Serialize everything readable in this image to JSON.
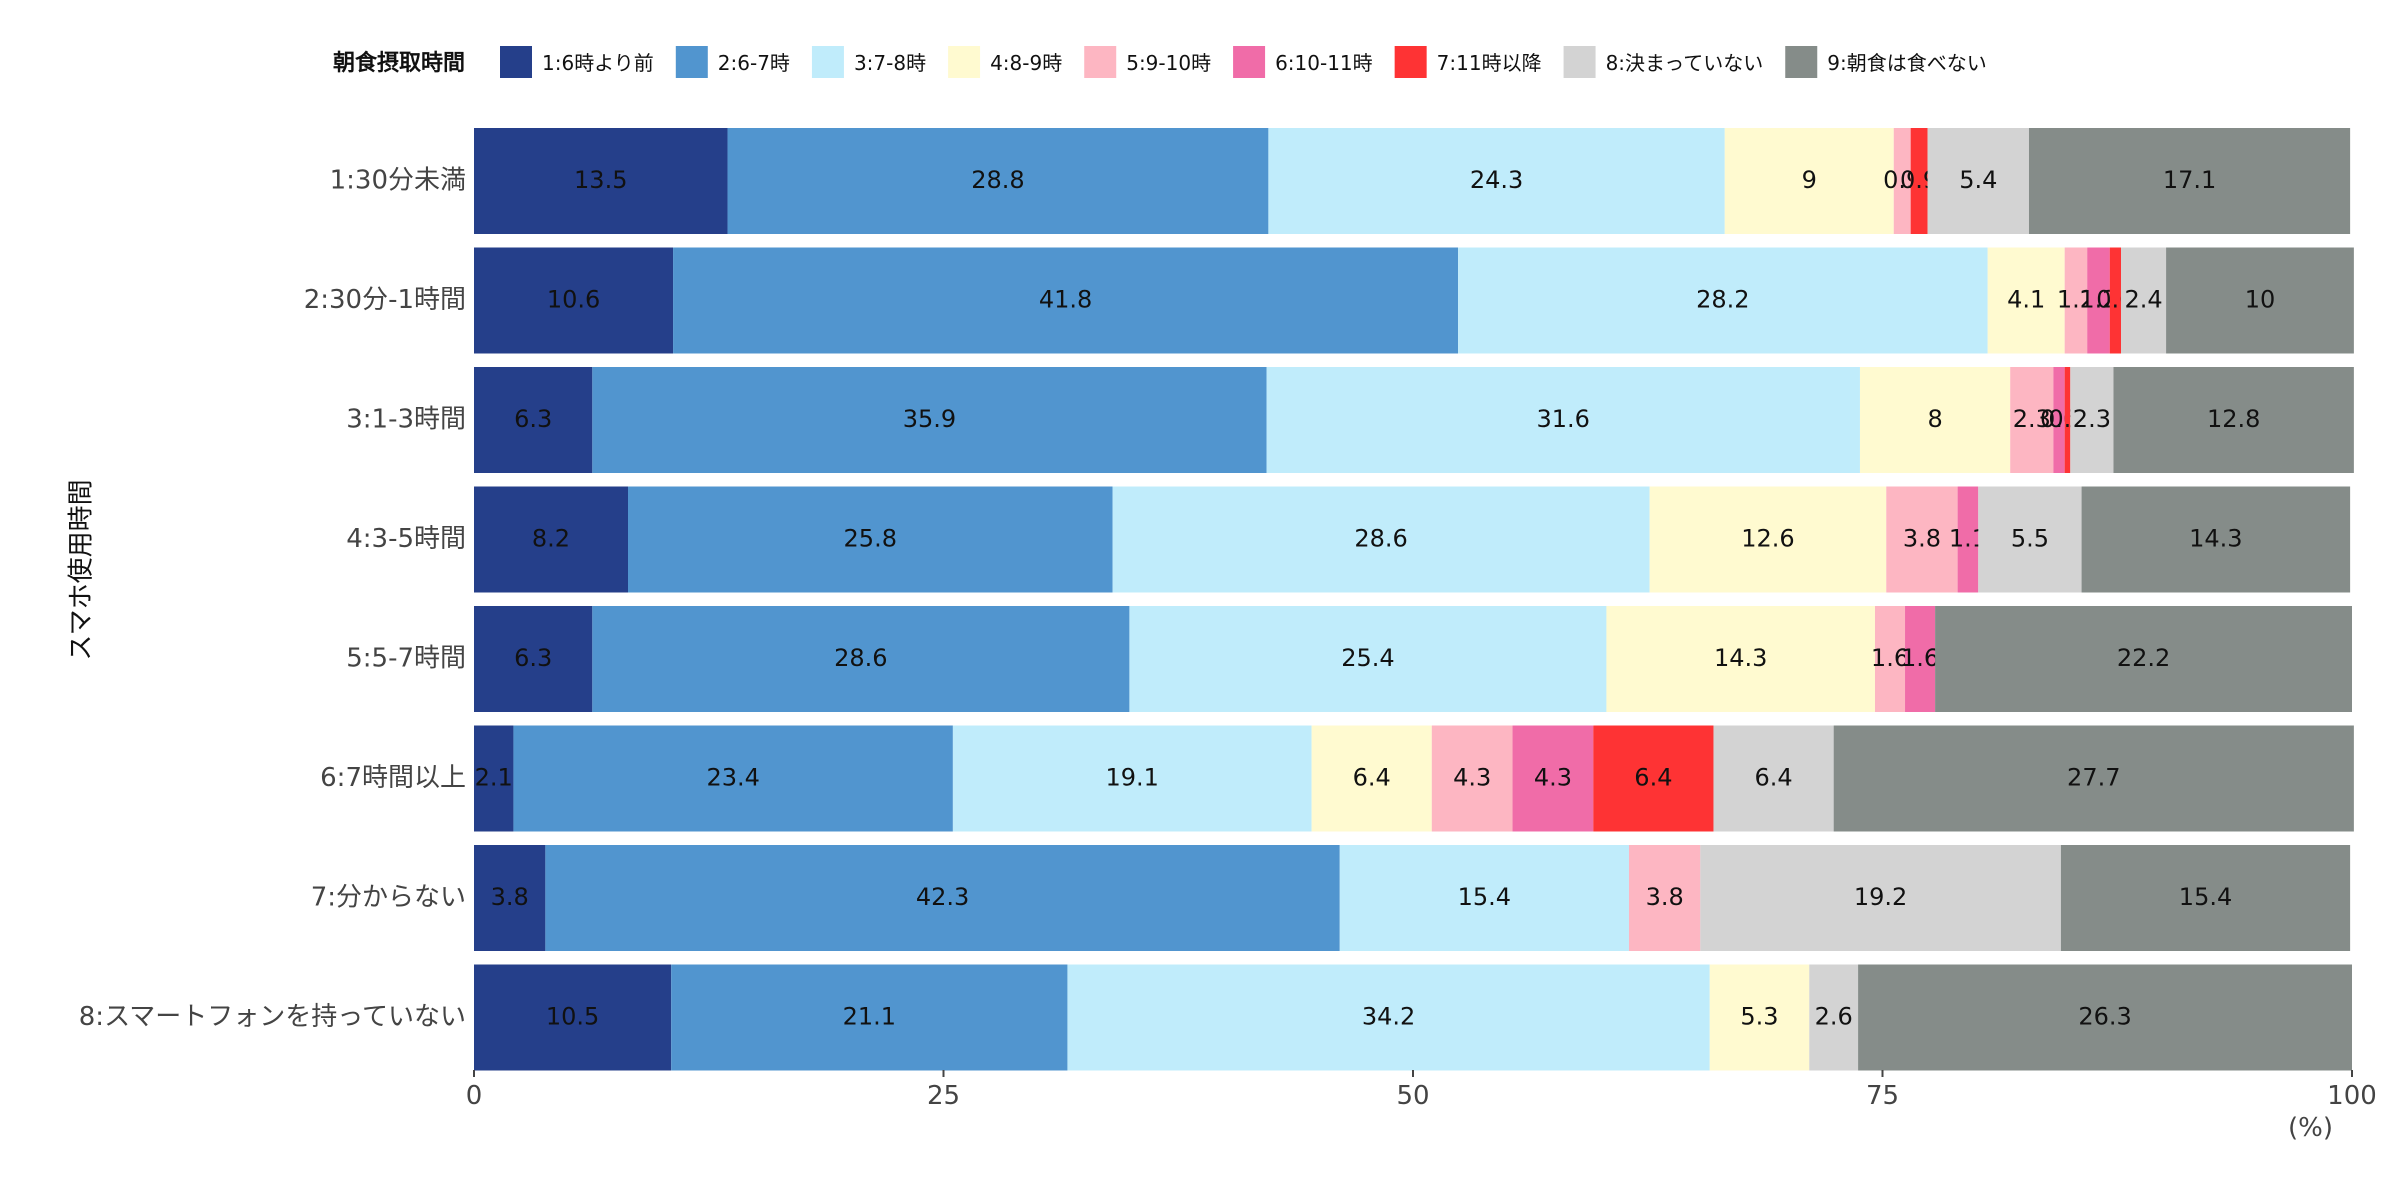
{
  "chart_data": {
    "type": "bar",
    "orientation": "horizontal",
    "stacked": true,
    "legend_title": "朝食摂取時間",
    "legend_placement": "top",
    "ylabel": "スマホ使用時間",
    "xunit": "(%)",
    "xlim": [
      0,
      100
    ],
    "xticks": [
      0,
      25,
      50,
      75,
      100
    ],
    "grid": false,
    "categories": [
      "1:30分未満",
      "2:30分-1時間",
      "3:1-3時間",
      "4:3-5時間",
      "5:5-7時間",
      "6:7時間以上",
      "7:分からない",
      "8:スマートフォンを持っていない"
    ],
    "series": [
      {
        "name": "1:6時より前",
        "color": "#253f8a",
        "values": [
          13.5,
          10.6,
          6.3,
          8.2,
          6.3,
          2.1,
          3.8,
          10.5
        ]
      },
      {
        "name": "2:6-7時",
        "color": "#5195cf",
        "values": [
          28.8,
          41.8,
          35.9,
          25.8,
          28.6,
          23.4,
          42.3,
          21.1
        ]
      },
      {
        "name": "3:7-8時",
        "color": "#c0ecfb",
        "values": [
          24.3,
          28.2,
          31.6,
          28.6,
          25.4,
          19.1,
          15.4,
          34.2
        ]
      },
      {
        "name": "4:8-9時",
        "color": "#fffad0",
        "values": [
          9,
          4.1,
          8,
          12.6,
          14.3,
          6.4,
          0,
          5.3
        ]
      },
      {
        "name": "5:9-10時",
        "color": "#fdb6c2",
        "values": [
          0.9,
          1.2,
          2.3,
          3.8,
          1.6,
          4.3,
          3.8,
          0
        ]
      },
      {
        "name": "6:10-11時",
        "color": "#f06ca8",
        "values": [
          0,
          1.2,
          0.6,
          1.1,
          1.6,
          4.3,
          0,
          0
        ]
      },
      {
        "name": "7:11時以降",
        "color": "#fe3334",
        "values": [
          0.9,
          0.6,
          0.3,
          0,
          0,
          6.4,
          0,
          0
        ]
      },
      {
        "name": "8:決まっていない",
        "color": "#d3d3d3",
        "values": [
          5.4,
          2.4,
          2.3,
          5.5,
          0,
          6.4,
          19.2,
          2.6
        ]
      },
      {
        "name": "9:朝食は食べない",
        "color": "#858c89",
        "values": [
          17.1,
          10,
          12.8,
          14.3,
          22.2,
          27.7,
          15.4,
          26.3
        ]
      }
    ]
  }
}
